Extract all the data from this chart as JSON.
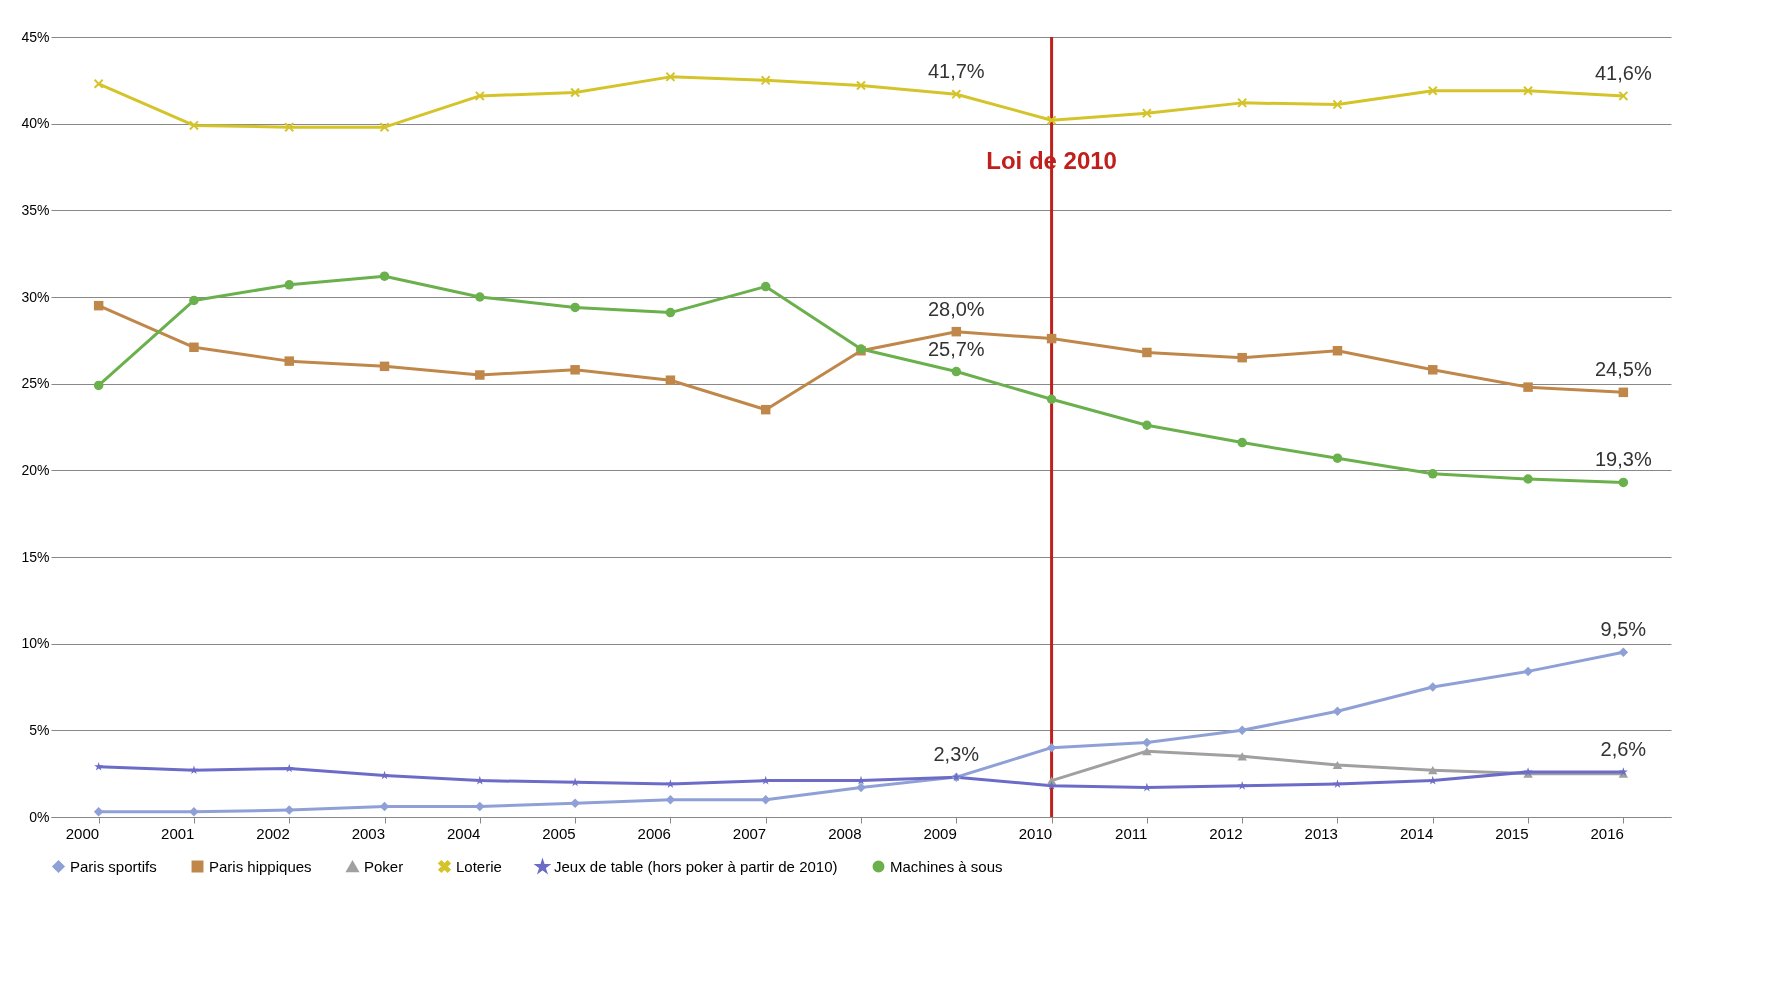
{
  "chart_data": {
    "type": "line",
    "categories": [
      "2000",
      "2001",
      "2002",
      "2003",
      "2004",
      "2005",
      "2006",
      "2007",
      "2008",
      "2009",
      "2010",
      "2011",
      "2012",
      "2013",
      "2014",
      "2015",
      "2016"
    ],
    "series": [
      {
        "name": "Paris sportifs",
        "color": "#8fa0d6",
        "marker": "diamond",
        "values": [
          0.3,
          0.3,
          0.4,
          0.6,
          0.6,
          0.8,
          1.0,
          1.0,
          1.7,
          2.3,
          4.0,
          4.3,
          5.0,
          6.1,
          7.5,
          8.4,
          9.5
        ]
      },
      {
        "name": "Paris hippiques",
        "color": "#c0874a",
        "marker": "square",
        "values": [
          29.5,
          27.1,
          26.3,
          26.0,
          25.5,
          25.8,
          25.2,
          23.5,
          26.9,
          28.0,
          27.6,
          26.8,
          26.5,
          26.9,
          25.8,
          24.8,
          24.5
        ]
      },
      {
        "name": "Poker",
        "color": "#a0a0a0",
        "marker": "triangle",
        "values": [
          null,
          null,
          null,
          null,
          null,
          null,
          null,
          null,
          null,
          null,
          2.1,
          3.8,
          3.5,
          3.0,
          2.7,
          2.5,
          2.5
        ]
      },
      {
        "name": "Loterie",
        "color": "#d4c42a",
        "marker": "cross",
        "values": [
          42.3,
          39.9,
          39.8,
          39.8,
          41.6,
          41.8,
          42.7,
          42.5,
          42.2,
          41.7,
          40.2,
          40.6,
          41.2,
          41.1,
          41.9,
          41.9,
          41.6
        ]
      },
      {
        "name": "Jeux de table (hors poker à partir de 2010)",
        "color": "#6c6cc8",
        "marker": "star",
        "values": [
          2.9,
          2.7,
          2.8,
          2.4,
          2.1,
          2.0,
          1.9,
          2.1,
          2.1,
          2.3,
          1.8,
          1.7,
          1.8,
          1.9,
          2.1,
          2.6,
          2.6
        ]
      },
      {
        "name": "Machines à sous",
        "color": "#6ab04c",
        "marker": "circle",
        "values": [
          24.9,
          29.8,
          30.7,
          31.2,
          30.0,
          29.4,
          29.1,
          30.6,
          27.0,
          25.7,
          24.1,
          22.6,
          21.6,
          20.7,
          19.8,
          19.5,
          19.3
        ]
      }
    ],
    "ylim": [
      0,
      45
    ],
    "yticks": [
      {
        "value": 0,
        "label": "0%"
      },
      {
        "value": 5,
        "label": "5%"
      },
      {
        "value": 10,
        "label": "10%"
      },
      {
        "value": 15,
        "label": "15%"
      },
      {
        "value": 20,
        "label": "20%"
      },
      {
        "value": 25,
        "label": "25%"
      },
      {
        "value": 30,
        "label": "30%"
      },
      {
        "value": 35,
        "label": "35%"
      },
      {
        "value": 40,
        "label": "40%"
      },
      {
        "value": 45,
        "label": "45%"
      }
    ],
    "grid": "y",
    "legend": "bottom",
    "line_style": "solid",
    "ref_lines": [
      {
        "axis": "x",
        "value": "2010",
        "label": "Loi de 2010",
        "color": "#c0201c"
      }
    ],
    "annotations": [
      {
        "text": "41,7%",
        "x": "2009",
        "y": 41.7
      },
      {
        "text": "41,6%",
        "x": "2016",
        "y": 41.6
      },
      {
        "text": "28,0%",
        "x": "2009",
        "y": 28.0
      },
      {
        "text": "25,7%",
        "x": "2009",
        "y": 25.7
      },
      {
        "text": "24,5%",
        "x": "2016",
        "y": 24.5
      },
      {
        "text": "19,3%",
        "x": "2016",
        "y": 19.3
      },
      {
        "text": "9,5%",
        "x": "2016",
        "y": 9.5
      },
      {
        "text": "2,3%",
        "x": "2009",
        "y": 2.3
      },
      {
        "text": "2,6%",
        "x": "2016",
        "y": 2.6
      }
    ]
  }
}
